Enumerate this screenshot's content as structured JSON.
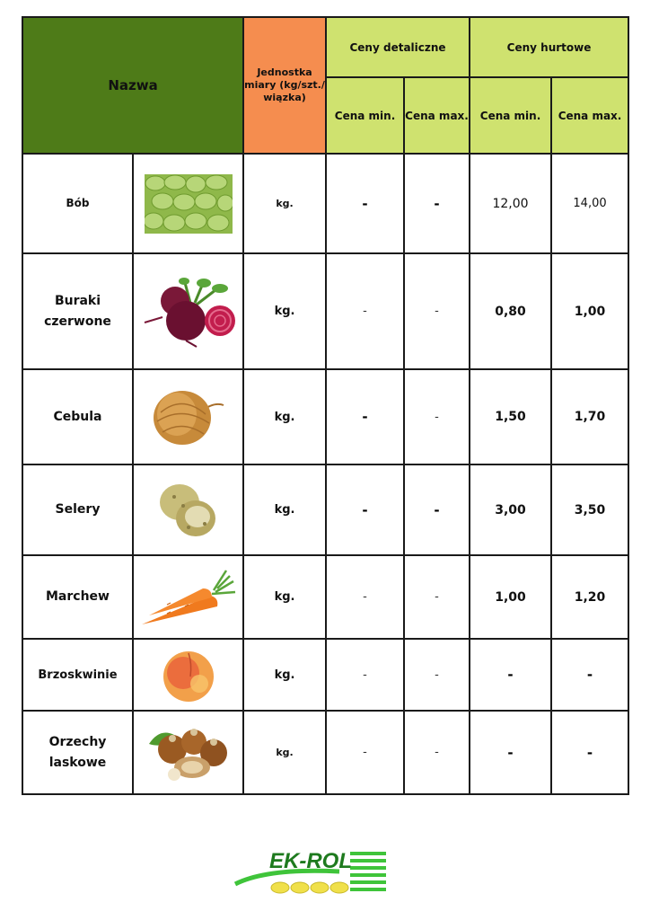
{
  "header": {
    "name": "Nazwa",
    "unit": "Jednostka miary (kg/szt./ wiązka)",
    "retail": "Ceny detaliczne",
    "wholesale": "Ceny hurtowe",
    "retail_min": "Cena min.",
    "retail_max": "Cena max.",
    "wholesale_min": "Cena min.",
    "wholesale_max": "Cena max."
  },
  "rows": [
    {
      "name": "Bób",
      "icon": "broad-beans-icon",
      "unit": "kg.",
      "retail_min": "-",
      "retail_max": "-",
      "wholesale_min": "12,00",
      "wholesale_max": "14,00"
    },
    {
      "name": "Buraki czerwone",
      "icon": "beetroot-icon",
      "unit": "kg.",
      "retail_min": "-",
      "retail_max": "-",
      "wholesale_min": "0,80",
      "wholesale_max": "1,00"
    },
    {
      "name": "Cebula",
      "icon": "onion-icon",
      "unit": "kg.",
      "retail_min": "-",
      "retail_max": "-",
      "wholesale_min": "1,50",
      "wholesale_max": "1,70"
    },
    {
      "name": "Selery",
      "icon": "celeriac-icon",
      "unit": "kg.",
      "retail_min": "-",
      "retail_max": "-",
      "wholesale_min": "3,00",
      "wholesale_max": "3,50"
    },
    {
      "name": "Marchew",
      "icon": "carrot-icon",
      "unit": "kg.",
      "retail_min": "-",
      "retail_max": "-",
      "wholesale_min": "1,00",
      "wholesale_max": "1,20"
    },
    {
      "name": "Brzoskwinie",
      "icon": "peach-icon",
      "unit": "kg.",
      "retail_min": "-",
      "retail_max": "-",
      "wholesale_min": "-",
      "wholesale_max": "-"
    },
    {
      "name": "Orzechy laskowe",
      "icon": "hazelnut-icon",
      "unit": "kg.",
      "retail_min": "-",
      "retail_max": "-",
      "wholesale_min": "-",
      "wholesale_max": "-"
    }
  ],
  "logo": {
    "text": "EK-ROL",
    "text_color": "#1e7a1e",
    "stripe_color": "#3fc43a",
    "grain_color": "#f0e04a"
  },
  "colors": {
    "name_header": "#4e7b18",
    "unit_header": "#f58d4f",
    "price_header": "#cfe26f"
  }
}
